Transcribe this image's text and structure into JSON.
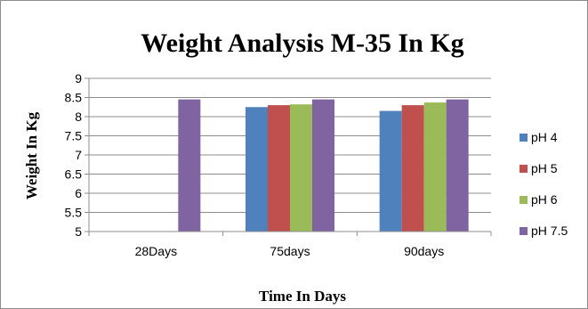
{
  "chart_data": {
    "type": "bar",
    "title": "Weight Analysis M-35 In Kg",
    "xlabel": "Time In Days",
    "ylabel": "Weight In Kg",
    "categories": [
      "28Days",
      "75days",
      "90days"
    ],
    "ylim": [
      5,
      9
    ],
    "yticks": [
      "5",
      "5.5",
      "6",
      "6.5",
      "7",
      "7.5",
      "8",
      "8.5",
      "9"
    ],
    "grid": true,
    "legend_position": "right",
    "series": [
      {
        "name": "pH 4",
        "color": "#4f81bd",
        "values": [
          null,
          8.25,
          8.15
        ]
      },
      {
        "name": "pH 5",
        "color": "#c0504d",
        "values": [
          null,
          8.3,
          8.3
        ]
      },
      {
        "name": "pH 6",
        "color": "#9bbb59",
        "values": [
          null,
          8.32,
          8.37
        ]
      },
      {
        "name": "pH 7.5",
        "color": "#8064a2",
        "values": [
          8.45,
          8.45,
          8.45
        ]
      }
    ]
  }
}
